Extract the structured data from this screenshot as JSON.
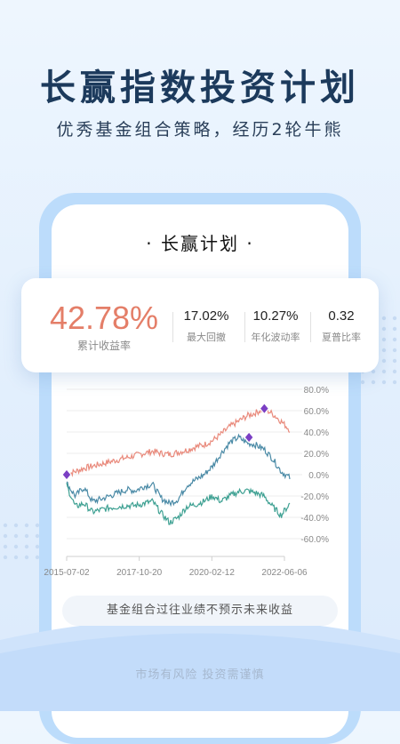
{
  "headline": "长赢指数投资计划",
  "subheadline": "优秀基金组合策略，经历2轮牛熊",
  "plan_title": "· 长赢计划 ·",
  "stats": {
    "main": {
      "value": "42.78%",
      "label": "累计收益率"
    },
    "items": [
      {
        "value": "17.02%",
        "label": "最大回撤"
      },
      {
        "value": "10.27%",
        "label": "年化波动率"
      },
      {
        "value": "0.32",
        "label": "夏普比率"
      }
    ]
  },
  "colors": {
    "accent_red": "#e47e68",
    "series_red": "#e98a7c",
    "series_blue": "#4a8aa6",
    "series_green": "#3fa193",
    "marker": "#7b3fc4",
    "heading": "#1c3a5c"
  },
  "chart_data": {
    "type": "line",
    "x_ticks": [
      "2015-07-02",
      "2017-10-20",
      "2020-02-12",
      "2022-06-06"
    ],
    "y_ticks": [
      "80.0%",
      "60.0%",
      "40.0%",
      "20.0%",
      "0.0%",
      "-20.0%",
      "-40.0%",
      "-60.0%"
    ],
    "ylim": [
      -60,
      80
    ],
    "grid": "horizontal",
    "series": [
      {
        "values": [
          0,
          3,
          6,
          8,
          10,
          12,
          14,
          16,
          18,
          20,
          22,
          20,
          19,
          21,
          23,
          26,
          28,
          32,
          38,
          45,
          50,
          55,
          58,
          62,
          57,
          50,
          42
        ]
      },
      {
        "values": [
          -8,
          -20,
          -12,
          -25,
          -23,
          -20,
          -17,
          -14,
          -15,
          -11,
          -9,
          -22,
          -27,
          -23,
          -10,
          -5,
          0,
          8,
          20,
          30,
          35,
          30,
          28,
          24,
          15,
          3,
          -3
        ]
      },
      {
        "values": [
          -10,
          -30,
          -27,
          -35,
          -33,
          -31,
          -30,
          -29,
          -29,
          -27,
          -25,
          -36,
          -45,
          -40,
          -30,
          -28,
          -25,
          -20,
          -25,
          -20,
          -16,
          -15,
          -17,
          -20,
          -30,
          -38,
          -27
        ]
      }
    ],
    "markers": [
      {
        "x": "2015-07-02",
        "value": 0
      },
      {
        "x": "2021-04-20",
        "value": 35
      },
      {
        "x": "2021-10-15",
        "value": 62
      }
    ]
  },
  "disclaimer": "基金组合过往业绩不预示未来收益",
  "risk_note": "市场有风险 投资需谨慎"
}
